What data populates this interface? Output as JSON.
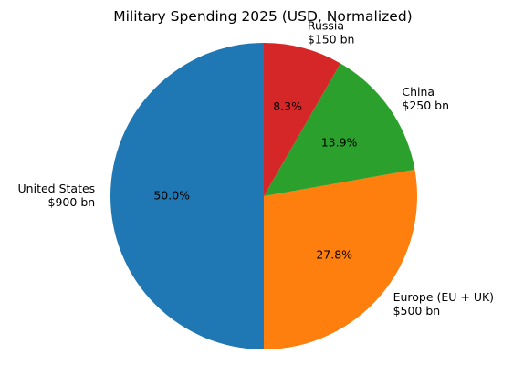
{
  "chart_data": {
    "type": "pie",
    "title": "Military Spending 2025 (USD, Normalized)",
    "slices": [
      {
        "label": "United States",
        "amount": "$900 bn",
        "value": 900,
        "percent_label": "50.0%",
        "color": "#1f77b4"
      },
      {
        "label": "Europe (EU + UK)",
        "amount": "$500 bn",
        "value": 500,
        "percent_label": "27.8%",
        "color": "#ff7f0e"
      },
      {
        "label": "China",
        "amount": "$250 bn",
        "value": 250,
        "percent_label": "13.9%",
        "color": "#2ca02c"
      },
      {
        "label": "Russia",
        "amount": "$150 bn",
        "value": 150,
        "percent_label": "8.3%",
        "color": "#d62728"
      }
    ],
    "start_angle_deg": 90,
    "direction": "counterclockwise",
    "legend": "none"
  }
}
